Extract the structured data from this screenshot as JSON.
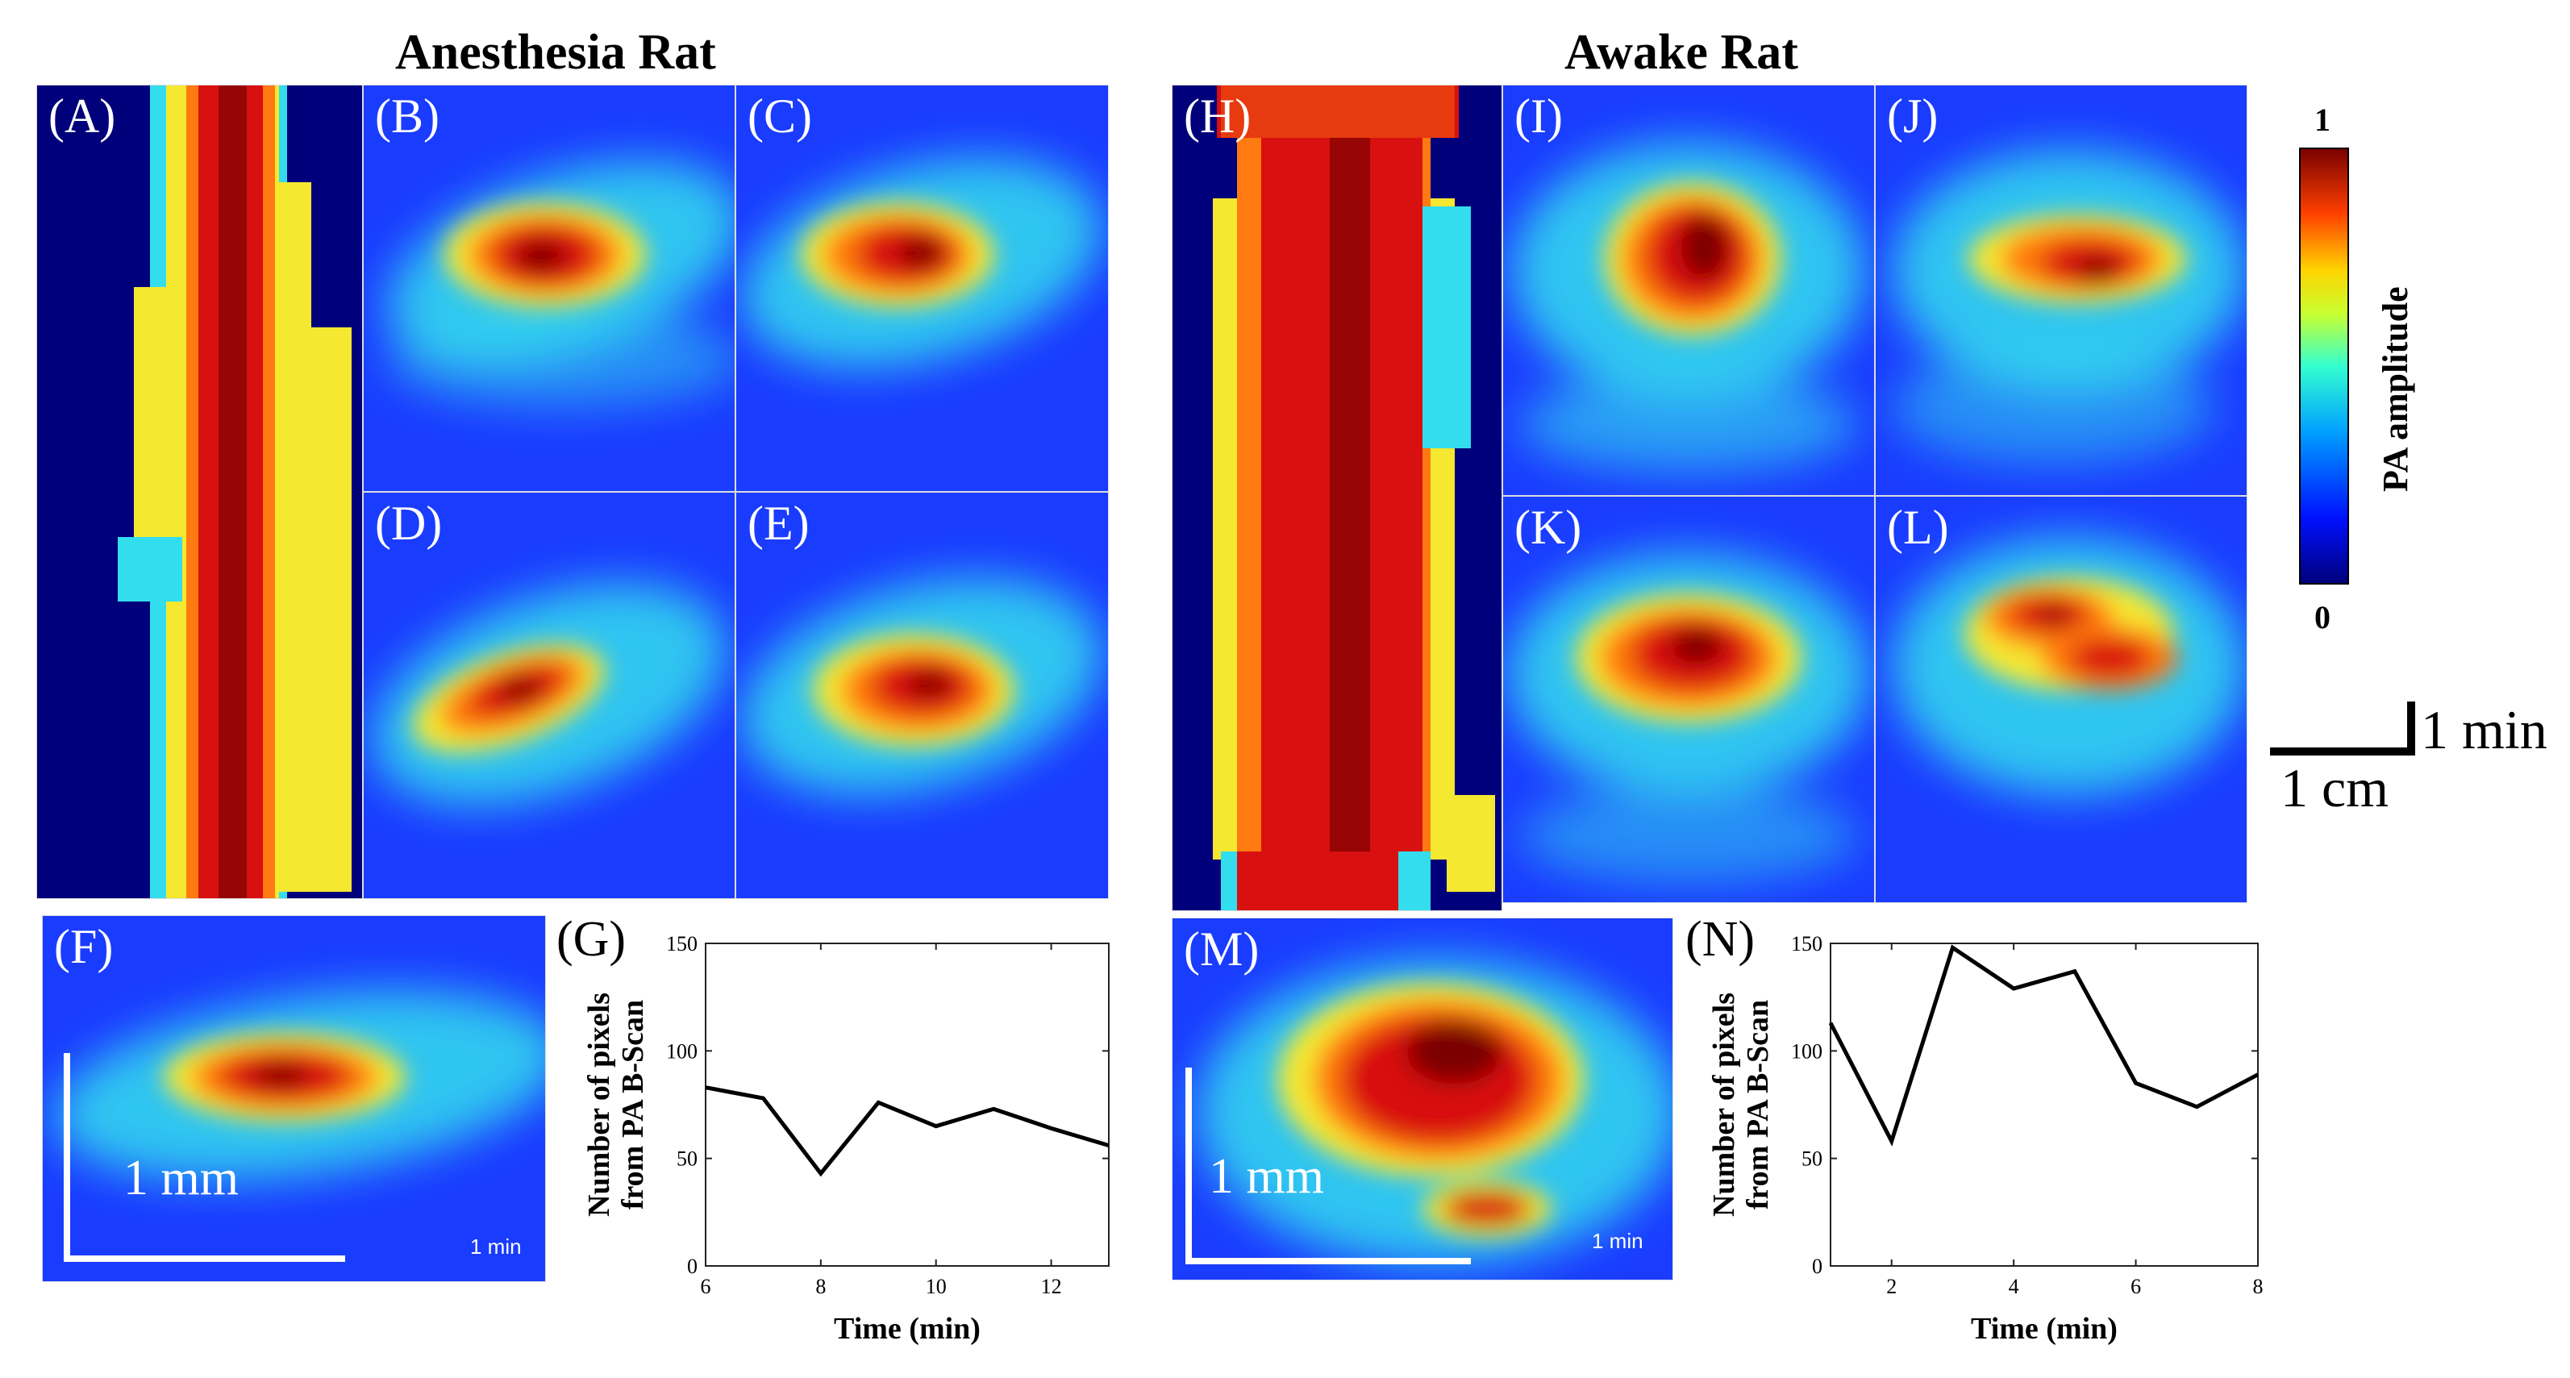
{
  "titles": {
    "left": "Anesthesia Rat",
    "right": "Awake Rat"
  },
  "panels": {
    "A": "(A)",
    "B": "(B)",
    "C": "(C)",
    "D": "(D)",
    "E": "(E)",
    "F": "(F)",
    "G": "(G)",
    "H": "(H)",
    "I": "(I)",
    "J": "(J)",
    "K": "(K)",
    "L": "(L)",
    "M": "(M)",
    "N": "(N)"
  },
  "scale": {
    "mm": "1 mm",
    "time_small": "1 min",
    "min": "1 min",
    "cm": "1 cm"
  },
  "colorbar": {
    "max": "1",
    "min": "0",
    "label": "PA amplitude"
  },
  "colors": {
    "dark_blue": "#00007a",
    "blue": "#1a3cff",
    "cyan": "#33ddee",
    "yellow": "#f5e830",
    "orange": "#ff7a10",
    "red": "#d81010",
    "dark_red": "#7a0000"
  },
  "chart_data": [
    {
      "type": "line",
      "panel": "G",
      "x": [
        6,
        7,
        8,
        9,
        10,
        11,
        12,
        13
      ],
      "y": [
        83,
        78,
        43,
        76,
        65,
        73,
        64,
        56
      ],
      "xlim": [
        6,
        13
      ],
      "ylim": [
        0,
        150
      ],
      "xticks": [
        6,
        8,
        10,
        12
      ],
      "yticks": [
        0,
        50,
        100,
        150
      ],
      "xlabel": "Time (min)",
      "ylabel_line1": "Number  of pixels",
      "ylabel_line2": "from  PA B-Scan"
    },
    {
      "type": "line",
      "panel": "N",
      "x": [
        1,
        2,
        3,
        4,
        5,
        6,
        7,
        8
      ],
      "y": [
        113,
        58,
        148,
        129,
        137,
        85,
        74,
        89
      ],
      "xlim": [
        1,
        8
      ],
      "ylim": [
        0,
        150
      ],
      "xticks": [
        2,
        4,
        6,
        8
      ],
      "yticks": [
        0,
        50,
        100,
        150
      ],
      "xlabel": "Time (min)",
      "ylabel_line1": "Number  of pixels",
      "ylabel_line2": "from  PA B-Scan"
    }
  ]
}
